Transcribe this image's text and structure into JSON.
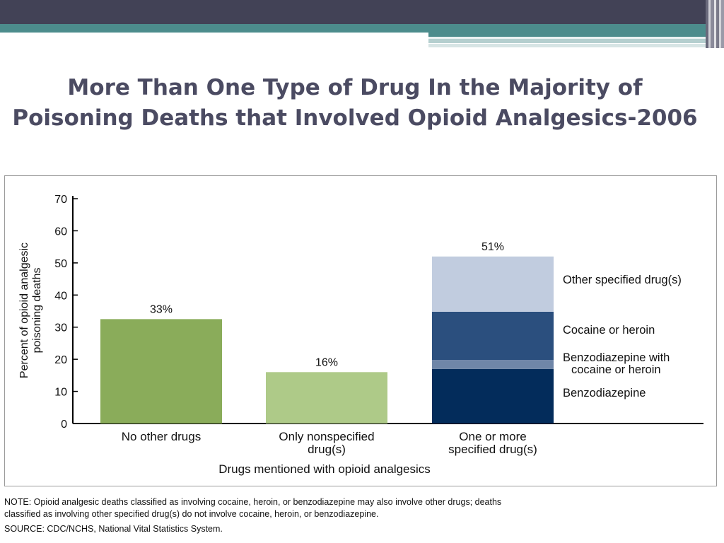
{
  "slide": {
    "title_line1": "More Than One Type of Drug In the Majority of",
    "title_line2": "Poisoning Deaths that Involved Opioid Analgesics-2006"
  },
  "colors": {
    "header_dark": "#424256",
    "header_teal": "#4c8c8c",
    "title_text": "#4b4b62"
  },
  "footnotes": {
    "note_line1": "NOTE: Opioid analgesic deaths classified as involving cocaine, heroin, or benzodiazepine may also involve other drugs; deaths",
    "note_line2": "classified as involving other specified drug(s) do not involve cocaine, heroin, or benzodiazepine.",
    "source": "SOURCE: CDC/NCHS, National Vital Statistics System."
  },
  "chart_data": {
    "type": "bar",
    "title": "",
    "xlabel": "Drugs mentioned with opioid analgesics",
    "ylabel_lines": [
      "Percent of opioid analgesic",
      "poisoning deaths"
    ],
    "ylim": [
      0,
      70
    ],
    "yticks": [
      0,
      10,
      20,
      30,
      40,
      50,
      60,
      70
    ],
    "grid": false,
    "categories": [
      {
        "label_lines": [
          "No other drugs"
        ],
        "total_label": "33%"
      },
      {
        "label_lines": [
          "Only nonspecified",
          "drug(s)"
        ],
        "total_label": "16%"
      },
      {
        "label_lines": [
          "One or more",
          "specified drug(s)"
        ],
        "total_label": "51%"
      }
    ],
    "bars": [
      {
        "category": 0,
        "segments": [
          {
            "value": 32.5,
            "color": "#8aac5a"
          }
        ]
      },
      {
        "category": 1,
        "segments": [
          {
            "value": 16,
            "color": "#aeca88"
          }
        ]
      },
      {
        "category": 2,
        "segments": [
          {
            "name": "Benzodiazepine",
            "value": 17,
            "color": "#032c5b"
          },
          {
            "name": "Benzodiazepine with cocaine or heroin",
            "value": 2.8,
            "color": "#6f86a8"
          },
          {
            "name": "Cocaine or heroin",
            "value": 15,
            "color": "#2b4f7e"
          },
          {
            "name": "Other specified drug(s)",
            "value": 17.2,
            "color": "#c1ccdf"
          }
        ]
      }
    ],
    "legend": {
      "placement": "right of third bar",
      "entries": [
        {
          "lines": [
            "Other specified drug(s)"
          ],
          "segment": 3
        },
        {
          "lines": [
            "Cocaine or heroin"
          ],
          "segment": 2
        },
        {
          "lines": [
            "Benzodiazepine with",
            "cocaine or heroin"
          ],
          "segment": 1
        },
        {
          "lines": [
            "Benzodiazepine"
          ],
          "segment": 0
        }
      ]
    }
  }
}
